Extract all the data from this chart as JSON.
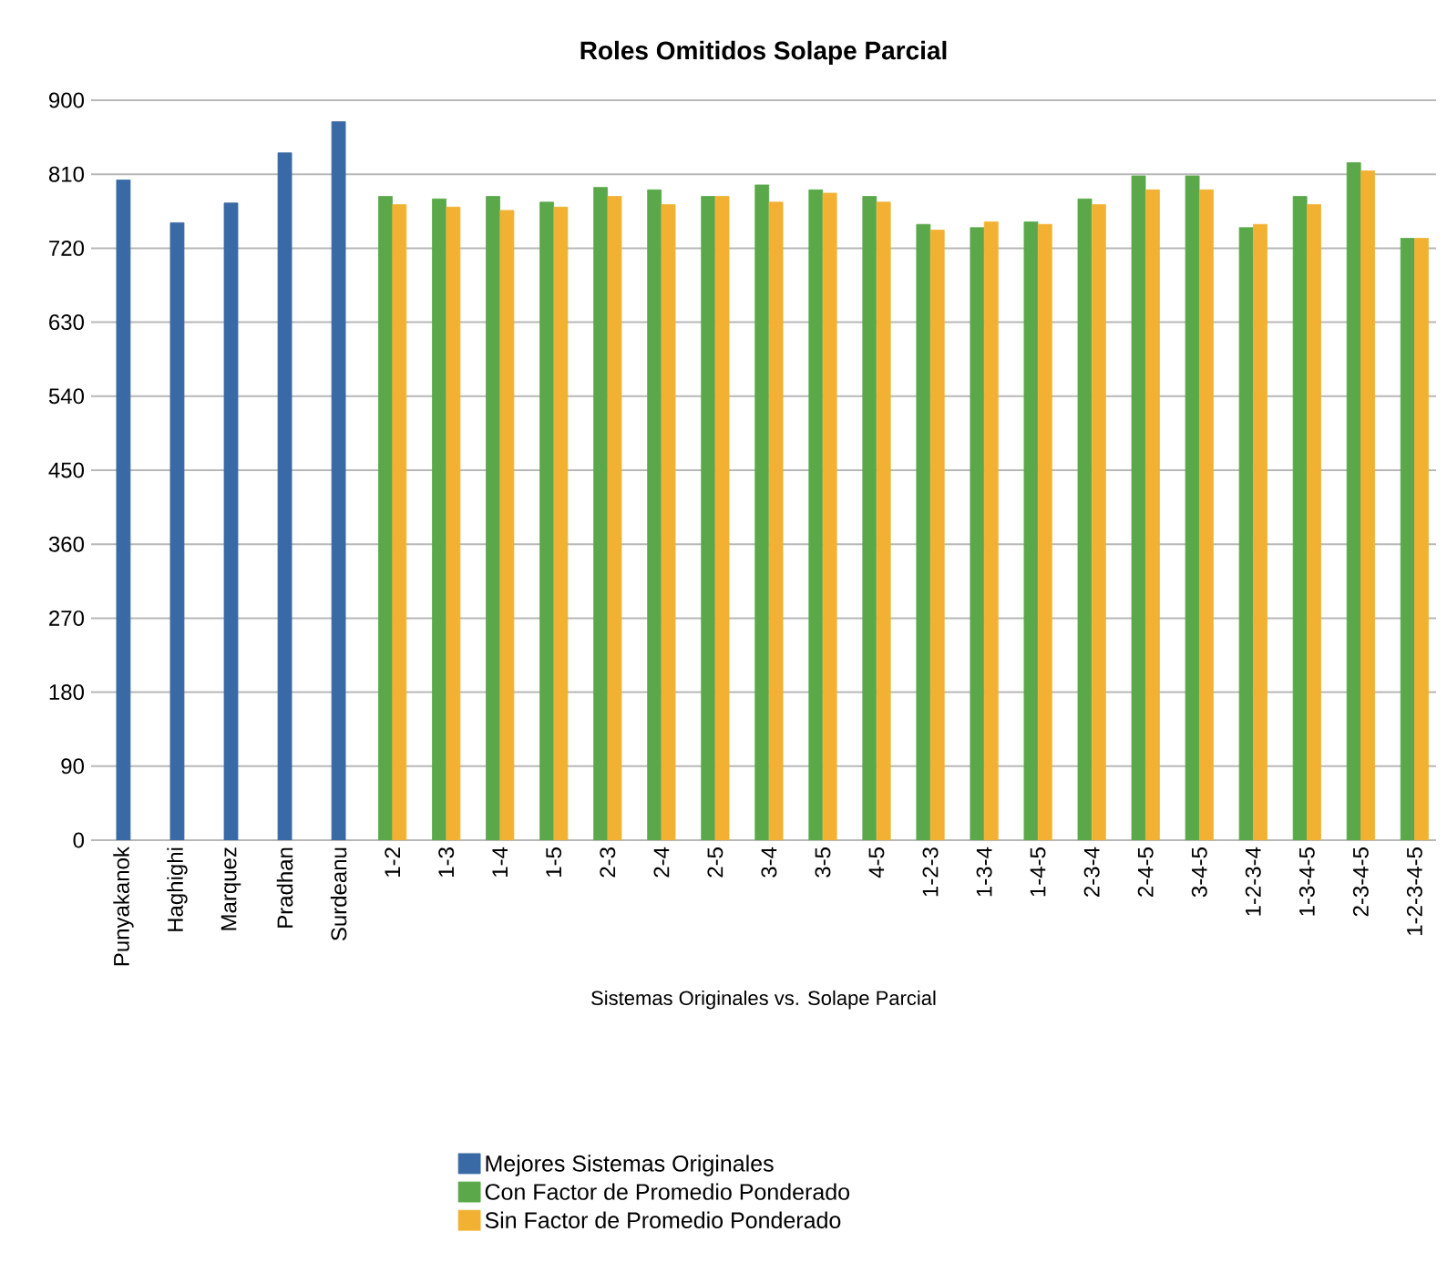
{
  "chart_data": {
    "type": "bar",
    "title": "Roles Omitidos Solape Parcial",
    "xlabel": "Sistemas Originales vs. Solape Parcial",
    "categories": [
      "Punyakanok",
      "Haghighi",
      "Marquez",
      "Pradhan",
      "Surdeanu",
      "1-2",
      "1-3",
      "1-4",
      "1-5",
      "2-3",
      "2-4",
      "2-5",
      "3-4",
      "3-5",
      "4-5",
      "1-2-3",
      "1-3-4",
      "1-4-5",
      "2-3-4",
      "2-4-5",
      "3-4-5",
      "1-2-3-4",
      "1-3-4-5",
      "2-3-4-5",
      "1-2-3-4-5"
    ],
    "series": [
      {
        "name": "Mejores Sistemas Originales",
        "color": "#3a6aa5",
        "values": [
          803,
          751,
          775,
          836,
          874,
          null,
          null,
          null,
          null,
          null,
          null,
          null,
          null,
          null,
          null,
          null,
          null,
          null,
          null,
          null,
          null,
          null,
          null,
          null,
          null
        ]
      },
      {
        "name": "Con Factor de Promedio Ponderado",
        "color": "#5aa84a",
        "values": [
          null,
          null,
          null,
          null,
          null,
          783,
          780,
          783,
          776,
          794,
          791,
          783,
          797,
          791,
          783,
          749,
          745,
          752,
          780,
          808,
          808,
          745,
          783,
          824,
          732
        ]
      },
      {
        "name": "Sin Factor de Promedio Ponderado",
        "color": "#f2b132",
        "values": [
          null,
          null,
          null,
          null,
          null,
          773,
          770,
          766,
          770,
          783,
          773,
          783,
          776,
          787,
          776,
          742,
          752,
          749,
          773,
          791,
          791,
          749,
          773,
          814,
          732
        ]
      }
    ],
    "ylim": [
      0,
      900
    ],
    "yticks": [
      0,
      90,
      180,
      270,
      360,
      450,
      540,
      630,
      720,
      810,
      900
    ],
    "grid": "y",
    "legend": "bottom"
  }
}
